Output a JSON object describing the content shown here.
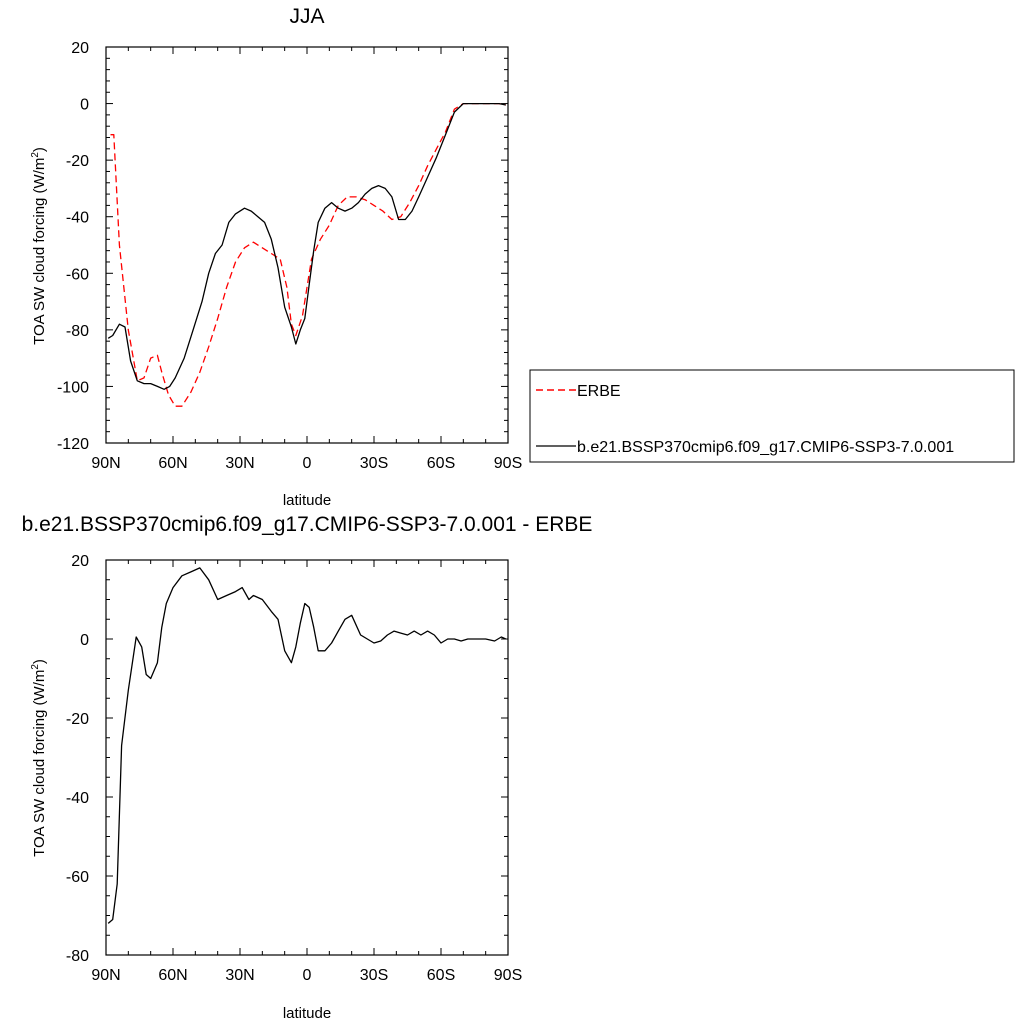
{
  "chart_data": [
    {
      "type": "line",
      "title": "JJA",
      "xlabel": "latitude",
      "ylabel": "TOA SW cloud forcing (W/m",
      "ylabel_sup": "2",
      "ylabel_close": ")",
      "xlim": [
        90,
        -90
      ],
      "ylim": [
        -120,
        20
      ],
      "xticks": [
        {
          "v": 90,
          "label": "90N"
        },
        {
          "v": 60,
          "label": "60N"
        },
        {
          "v": 30,
          "label": "30N"
        },
        {
          "v": 0,
          "label": "0"
        },
        {
          "v": -30,
          "label": "30S"
        },
        {
          "v": -60,
          "label": "60S"
        },
        {
          "v": -90,
          "label": "90S"
        }
      ],
      "yticks": [
        20,
        0,
        -20,
        -40,
        -60,
        -80,
        -100,
        -120
      ],
      "legend": "right",
      "series": [
        {
          "name": "ERBE",
          "color": "#ff0000",
          "dash": true,
          "x": [
            88,
            86.5,
            84,
            80,
            76,
            73,
            70,
            67,
            65,
            62,
            59,
            56,
            52,
            48,
            44,
            40,
            36,
            32,
            28,
            24,
            20,
            16,
            12,
            9,
            7,
            5,
            2,
            -2,
            -6,
            -10,
            -14,
            -18,
            -22,
            -26,
            -30,
            -34,
            -38,
            -42,
            -46,
            -50,
            -54,
            -58,
            -62,
            -66,
            -70,
            -74,
            -78,
            -82,
            -86,
            -89
          ],
          "y": [
            -11,
            -11,
            -50,
            -80,
            -98,
            -97,
            -90,
            -89,
            -95,
            -103,
            -107,
            -107,
            -102,
            -95,
            -86,
            -76,
            -65,
            -56,
            -51,
            -49,
            -51,
            -53,
            -55,
            -65,
            -78,
            -82,
            -75,
            -55,
            -48,
            -43,
            -36,
            -33,
            -33,
            -34,
            -36,
            -38,
            -41,
            -40,
            -35,
            -29,
            -22,
            -16,
            -10,
            -2,
            0,
            0,
            0,
            0,
            0,
            -0.5
          ]
        },
        {
          "name": "b.e21.BSSP370cmip6.f09_g17.CMIP6-SSP3-7.0.001",
          "color": "#000000",
          "dash": false,
          "x": [
            89,
            87,
            84,
            81.5,
            79,
            76,
            73,
            70,
            67,
            64,
            61.5,
            59,
            55,
            51,
            47,
            44,
            41,
            38,
            35,
            32,
            28,
            25,
            22,
            19,
            16,
            13,
            10,
            7,
            5,
            3,
            1,
            -1,
            -3,
            -5,
            -8,
            -11,
            -14,
            -17,
            -20,
            -23,
            -26,
            -29,
            -32,
            -35,
            -38,
            -41,
            -44,
            -47,
            -50,
            -54,
            -58,
            -62,
            -66,
            -70,
            -74,
            -78,
            -82,
            -86,
            -89
          ],
          "y": [
            -83,
            -82,
            -78,
            -79,
            -91,
            -98,
            -99,
            -99,
            -100,
            -101,
            -100,
            -97,
            -90,
            -80,
            -70,
            -60,
            -53,
            -50,
            -42,
            -39,
            -37,
            -38,
            -40,
            -42,
            -48,
            -58,
            -72,
            -79,
            -85,
            -80,
            -76,
            -64,
            -52,
            -42,
            -37,
            -35,
            -37,
            -38,
            -37,
            -35,
            -32,
            -30,
            -29,
            -30,
            -33,
            -41,
            -41,
            -38,
            -33,
            -26,
            -19,
            -11,
            -3,
            0,
            0,
            0,
            0,
            0,
            -0.5
          ]
        }
      ]
    },
    {
      "type": "line",
      "title": "b.e21.BSSP370cmip6.f09_g17.CMIP6-SSP3-7.0.001 - ERBE",
      "xlabel": "latitude",
      "ylabel": "TOA SW cloud forcing (W/m",
      "ylabel_sup": "2",
      "ylabel_close": ")",
      "xlim": [
        90,
        -90
      ],
      "ylim": [
        -80,
        20
      ],
      "xticks": [
        {
          "v": 90,
          "label": "90N"
        },
        {
          "v": 60,
          "label": "60N"
        },
        {
          "v": 30,
          "label": "30N"
        },
        {
          "v": 0,
          "label": "0"
        },
        {
          "v": -30,
          "label": "30S"
        },
        {
          "v": -60,
          "label": "60S"
        },
        {
          "v": -90,
          "label": "90S"
        }
      ],
      "yticks": [
        20,
        0,
        -20,
        -40,
        -60,
        -80
      ],
      "series": [
        {
          "color": "#000000",
          "dash": false,
          "x": [
            89,
            87,
            85,
            83,
            80,
            76.5,
            74,
            72,
            70,
            67,
            65,
            63,
            60,
            56,
            52,
            48,
            44,
            40,
            36,
            32,
            29,
            26,
            24,
            20,
            16,
            13,
            10,
            7,
            5,
            3,
            1,
            -1,
            -3,
            -5,
            -8,
            -11,
            -14,
            -17,
            -20,
            -24,
            -27,
            -30,
            -33,
            -36,
            -39,
            -42,
            -45,
            -48,
            -51,
            -54,
            -57,
            -60,
            -63,
            -66,
            -69,
            -72,
            -76,
            -80,
            -84,
            -87,
            -89
          ],
          "y": [
            -72,
            -71,
            -62,
            -27,
            -13,
            0.5,
            -2,
            -9,
            -10,
            -6,
            3,
            9,
            13,
            16,
            17,
            18,
            15,
            10,
            11,
            12,
            13,
            10,
            11,
            10,
            7,
            5,
            -3,
            -6,
            -2,
            4,
            9,
            8,
            3,
            -3,
            -3,
            -1,
            2,
            5,
            6,
            1,
            0,
            -1,
            -0.5,
            1,
            2,
            1.5,
            1,
            2,
            1,
            2,
            1,
            -1,
            0,
            0,
            -0.5,
            0,
            0,
            0,
            -0.5,
            0.5,
            0
          ]
        }
      ]
    }
  ]
}
